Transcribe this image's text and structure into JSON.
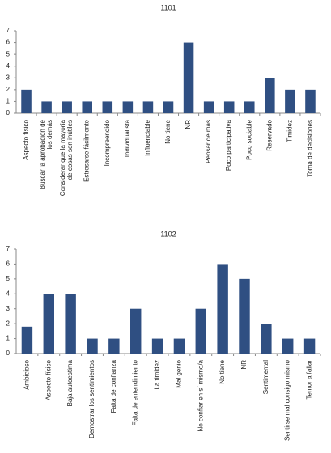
{
  "chart_data": [
    {
      "type": "bar",
      "title": "1101",
      "color": "#2f4f82",
      "categories": [
        "Aspecto físico",
        "Buscar la aprobación de los demás",
        "Considerar que la mayoría de cosas son inútiles",
        "Estresarse fácilmente",
        "Incompreendido",
        "Individualista",
        "Influenciable",
        "No tiene",
        "NR",
        "Pensar de más",
        "Poco participativa",
        "Poco sociable",
        "Reservado",
        "Timidez",
        "Toma de decisiones"
      ],
      "values": [
        2,
        1,
        1,
        1,
        1,
        1,
        1,
        1,
        6,
        1,
        1,
        1,
        3,
        2,
        2
      ],
      "ylim": [
        0,
        7
      ],
      "yticks": [
        0,
        1,
        2,
        3,
        4,
        5,
        6,
        7
      ],
      "grid": false
    },
    {
      "type": "bar",
      "title": "1102",
      "color": "#2f4f82",
      "categories": [
        "Ambicioso",
        "Aspecto físico",
        "Baja autoestima",
        "Demostrar los sentimientos",
        "Falta de confianza",
        "Falta de entendimiento",
        "La timidez",
        "Mal genio",
        "No confiar en sí mismo/a",
        "No tiene",
        "NR",
        "Sentimental",
        "Sentirse mal consigo mismo",
        "Temor a fallar"
      ],
      "values": [
        1.8,
        4,
        4,
        1,
        1,
        3,
        1,
        1,
        3,
        6,
        5,
        2,
        1,
        1
      ],
      "ylim": [
        0,
        7
      ],
      "yticks": [
        0,
        1,
        2,
        3,
        4,
        5,
        6,
        7
      ],
      "grid": false
    }
  ]
}
